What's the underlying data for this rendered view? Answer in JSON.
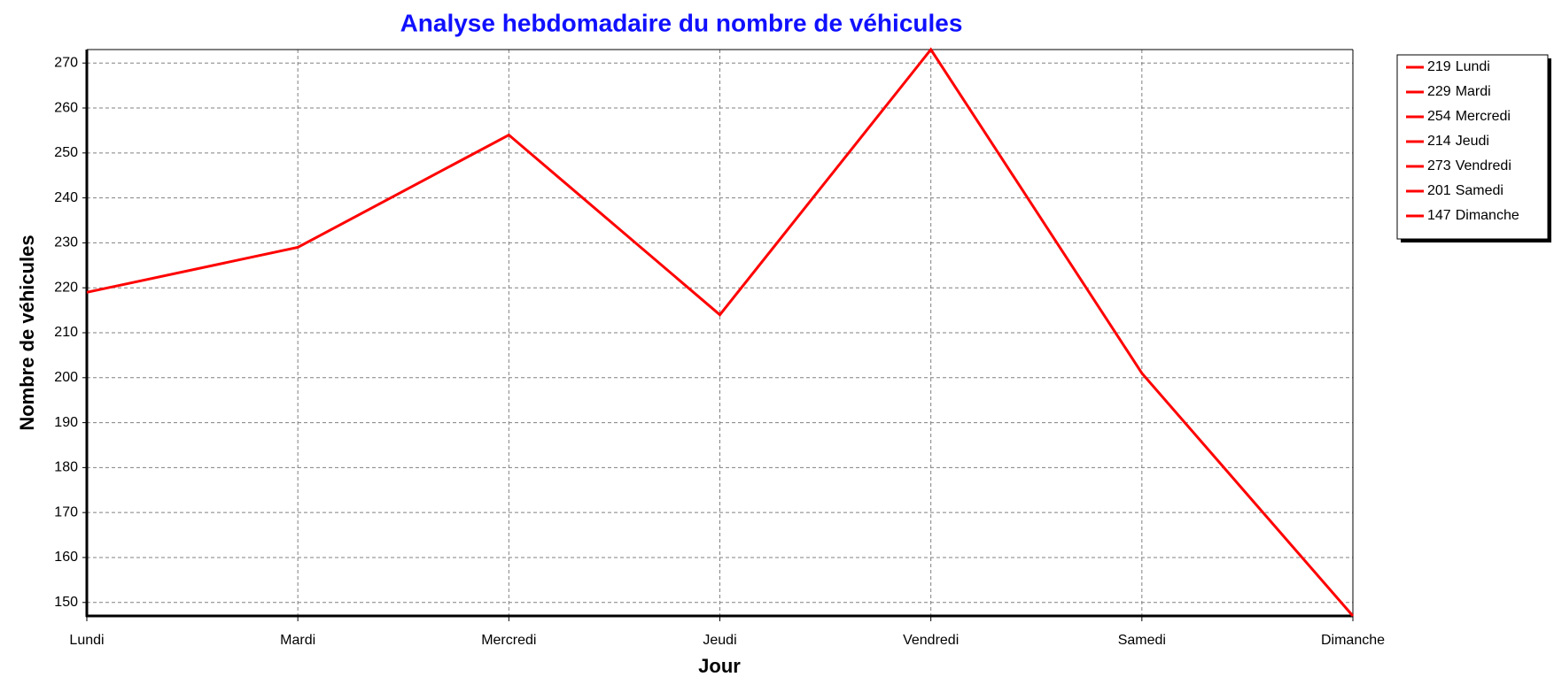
{
  "chart_data": {
    "type": "line",
    "title": "Analyse hebdomadaire du nombre de véhicules",
    "x_label": "Jour",
    "y_label": "Nombre de véhicules",
    "categories": [
      "Lundi",
      "Mardi",
      "Mercredi",
      "Jeudi",
      "Vendredi",
      "Samedi",
      "Dimanche"
    ],
    "values": [
      219,
      229,
      254,
      214,
      273,
      201,
      147
    ],
    "color": "#ff0000",
    "ylim": [
      147,
      273
    ],
    "yticks": [
      150,
      160,
      170,
      180,
      190,
      200,
      210,
      220,
      230,
      240,
      250,
      260,
      270
    ],
    "grid": true,
    "legend": "right"
  }
}
